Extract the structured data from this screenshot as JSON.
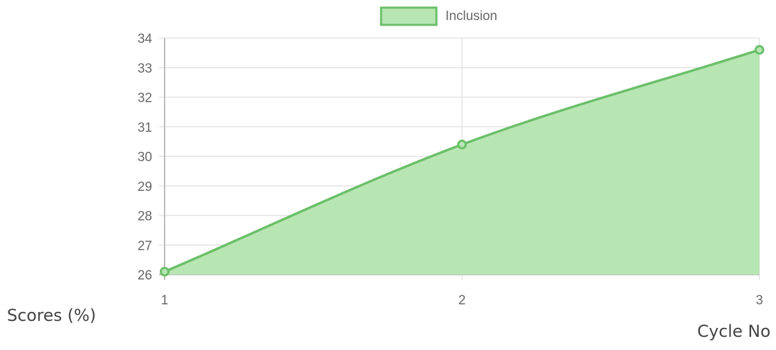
{
  "chart_data": {
    "type": "area",
    "x": [
      1,
      2,
      3
    ],
    "series": [
      {
        "name": "Inclusion",
        "values": [
          26.1,
          30.4,
          33.6
        ]
      }
    ],
    "xlabel": "Cycle No",
    "ylabel": "Scores (%)",
    "ylim": [
      26,
      34
    ],
    "yticks": [
      26,
      27,
      28,
      29,
      30,
      31,
      32,
      33,
      34
    ],
    "xticks": [
      1,
      2,
      3
    ],
    "grid": true,
    "legend": "top-center",
    "colors": {
      "line": "#6abf69",
      "fill": "#b8e6b3",
      "grid": "#e3e3e3",
      "axis": "#bdbdbd"
    }
  }
}
